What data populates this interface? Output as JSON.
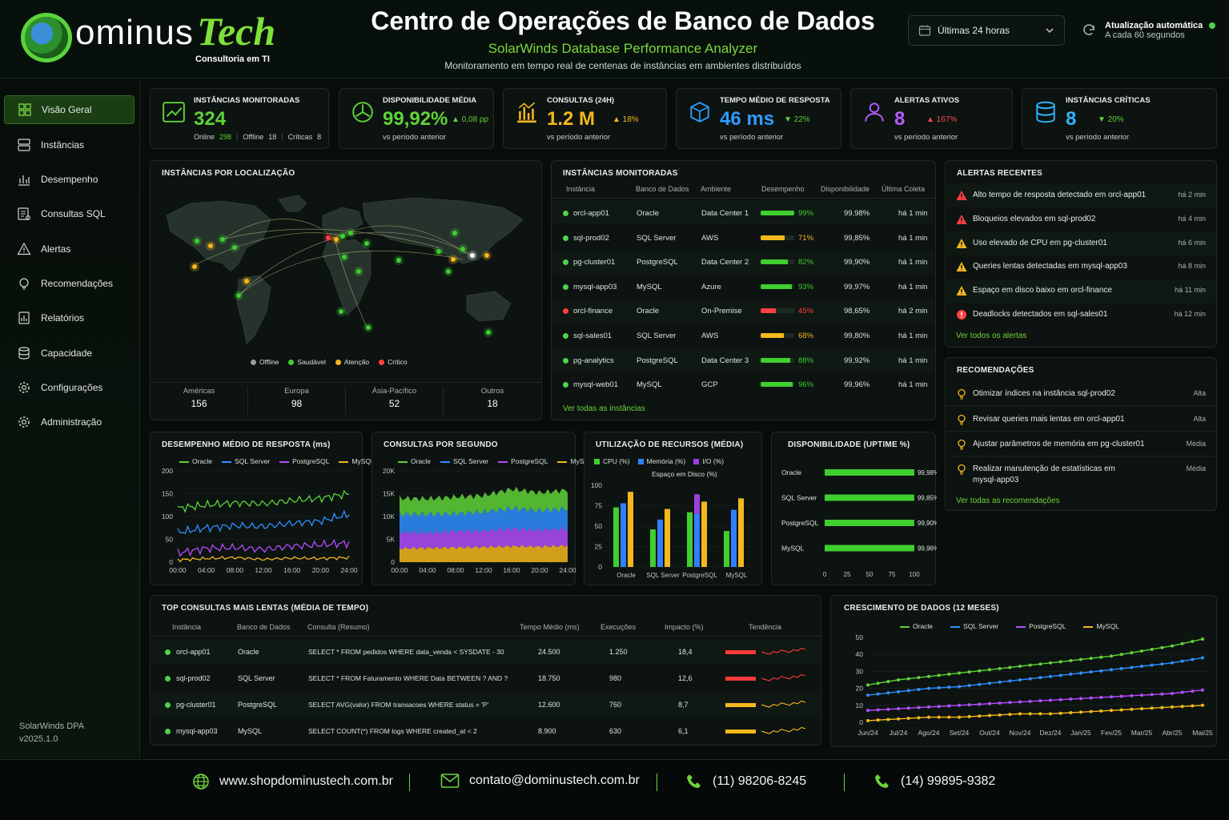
{
  "header": {
    "logo_main": "ominus",
    "logo_accent": "Tech",
    "logo_sub": "Consultoria em TI",
    "title": "Centro de Operações de Banco de Dados",
    "subtitle": "SolarWinds Database Performance Analyzer",
    "description": "Monitoramento em tempo real de centenas de instâncias em ambientes distribuídos",
    "period_select": "Últimas 24 horas",
    "auto_title": "Atualização automática",
    "auto_sub": "A cada 60 segundos"
  },
  "sidebar": {
    "items": [
      "Visão Geral",
      "Instâncias",
      "Desempenho",
      "Consultas SQL",
      "Alertas",
      "Recomendações",
      "Relatórios",
      "Capacidade",
      "Configurações",
      "Administração"
    ],
    "version_line1": "SolarWinds DPA",
    "version_line2": "v2025.1.0"
  },
  "kpis": [
    {
      "label": "INSTÂNCIAS MONITORADAS",
      "value": "324",
      "color": "#5fd33a",
      "online_label": "Online",
      "online": "298",
      "offline_label": "Offline",
      "offline": "18",
      "critical_label": "Críticas",
      "critical": "8",
      "icon": "trend-chart-icon"
    },
    {
      "label": "DISPONIBILIDADE MÉDIA",
      "value": "99,92%",
      "color": "#5fd33a",
      "change": "▲ 0,08 pp",
      "change_color": "#5fd33a",
      "sub": "vs período anterior",
      "icon": "gauge-icon"
    },
    {
      "label": "CONSULTAS (24H)",
      "value": "1.2 M",
      "color": "#f5b81c",
      "change": "▲ 18%",
      "change_color": "#f5b81c",
      "sub": "vs período anterior",
      "icon": "bar-chart-icon"
    },
    {
      "label": "TEMPO MÉDIO DE RESPOSTA",
      "value": "46 ms",
      "color": "#2f9cff",
      "change": "▼ 22%",
      "change_color": "#5fd33a",
      "sub": "vs período anterior",
      "icon": "cube-icon"
    },
    {
      "label": "ALERTAS ATIVOS",
      "value": "8",
      "color": "#b45cff",
      "change": "▲ 167%",
      "change_color": "#ff4848",
      "sub": "vs período anterior",
      "icon": "users-icon"
    },
    {
      "label": "INSTÂNCIAS CRÍTICAS",
      "value": "8",
      "color": "#2fb5ff",
      "change": "▼ 20%",
      "change_color": "#5fd33a",
      "sub": "vs período anterior",
      "icon": "database-icon"
    }
  ],
  "map": {
    "title": "INSTÂNCIAS POR LOCALIZAÇÃO",
    "legend": [
      "Offline",
      "Saudável",
      "Atenção",
      "Crítico"
    ],
    "regions": [
      {
        "name": "Américas",
        "value": "156"
      },
      {
        "name": "Europa",
        "value": "98"
      },
      {
        "name": "Ásia-Pacífico",
        "value": "52"
      },
      {
        "name": "Outros",
        "value": "18"
      }
    ]
  },
  "instances": {
    "title": "INSTÂNCIAS MONITORADAS",
    "columns": [
      "Instância",
      "Banco de Dados",
      "Ambiente",
      "Desempenho",
      "Disponibilidade",
      "Última Coleta"
    ],
    "rows": [
      {
        "name": "orcl-app01",
        "db": "Oracle",
        "env": "Data Center 1",
        "perf": 99,
        "perf_label": "99%",
        "avail": "99,98%",
        "last": "há 1 min",
        "status": "#4fd34f",
        "bar": "#3fcf2f"
      },
      {
        "name": "sql-prod02",
        "db": "SQL Server",
        "env": "AWS",
        "perf": 71,
        "perf_label": "71%",
        "avail": "99,85%",
        "last": "há 1 min",
        "status": "#4fd34f",
        "bar": "#f5b81c"
      },
      {
        "name": "pg-cluster01",
        "db": "PostgreSQL",
        "env": "Data Center 2",
        "perf": 82,
        "perf_label": "82%",
        "avail": "99,90%",
        "last": "há 1 min",
        "status": "#4fd34f",
        "bar": "#3fcf2f"
      },
      {
        "name": "mysql-app03",
        "db": "MySQL",
        "env": "Azure",
        "perf": 93,
        "perf_label": "93%",
        "avail": "99,97%",
        "last": "há 1 min",
        "status": "#4fd34f",
        "bar": "#3fcf2f"
      },
      {
        "name": "orcl-finance",
        "db": "Oracle",
        "env": "On-Premise",
        "perf": 45,
        "perf_label": "45%",
        "avail": "98,65%",
        "last": "há 2 min",
        "status": "#ff4040",
        "bar": "#ff4040"
      },
      {
        "name": "sql-sales01",
        "db": "SQL Server",
        "env": "AWS",
        "perf": 68,
        "perf_label": "68%",
        "avail": "99,80%",
        "last": "há 1 min",
        "status": "#4fd34f",
        "bar": "#f5b81c"
      },
      {
        "name": "pg-analytics",
        "db": "PostgreSQL",
        "env": "Data Center 3",
        "perf": 88,
        "perf_label": "88%",
        "avail": "99,92%",
        "last": "há 1 min",
        "status": "#4fd34f",
        "bar": "#3fcf2f"
      },
      {
        "name": "mysql-web01",
        "db": "MySQL",
        "env": "GCP",
        "perf": 96,
        "perf_label": "96%",
        "avail": "99,96%",
        "last": "há 1 min",
        "status": "#4fd34f",
        "bar": "#3fcf2f"
      }
    ],
    "link": "Ver todas as instâncias"
  },
  "alerts": {
    "title": "ALERTAS RECENTES",
    "items": [
      {
        "text": "Alto tempo de resposta detectado em orcl-app01",
        "time": "há 2 min",
        "color": "#ff4040"
      },
      {
        "text": "Bloqueios elevados em sql-prod02",
        "time": "há 4 min",
        "color": "#ff4040"
      },
      {
        "text": "Uso elevado de CPU em pg-cluster01",
        "time": "há 6 min",
        "color": "#f5b81c"
      },
      {
        "text": "Queries lentas detectadas em mysql-app03",
        "time": "há 8 min",
        "color": "#f5b81c"
      },
      {
        "text": "Espaço em disco baixo em orcl-finance",
        "time": "há 11 min",
        "color": "#f5b81c"
      },
      {
        "text": "Deadlocks detectados em sql-sales01",
        "time": "há 12 min",
        "color": "#ff4040"
      }
    ],
    "link": "Ver todos os alertas"
  },
  "recommendations": {
    "title": "RECOMENDAÇÕES",
    "items": [
      {
        "line1": "Otimizar índices na instância sql-prod02",
        "line2": "",
        "priority": "Alta"
      },
      {
        "line1": "Revisar queries mais lentas em orcl-app01",
        "line2": "",
        "priority": "Alta"
      },
      {
        "line1": "Ajustar parâmetros de memória em pg-cluster01",
        "line2": "",
        "priority": "Média"
      },
      {
        "line1": "Realizar manutenção de estatísticas em",
        "line2": "mysql-app03",
        "priority": "Média"
      }
    ],
    "link": "Ver todas as recomendações"
  },
  "slow_queries": {
    "title": "TOP CONSULTAS MAIS LENTAS (MÉDIA DE TEMPO)",
    "columns": [
      "Instância",
      "Banco de Dados",
      "Consulta (Resumo)",
      "Tempo Médio (ms)",
      "Execuções",
      "Impacto (%)",
      "Tendência"
    ],
    "rows": [
      {
        "inst": "orcl-app01",
        "db": "Oracle",
        "query": "SELECT * FROM pedidos WHERE data_venda < SYSDATE - 30",
        "time": "24.500",
        "exec": "1.250",
        "impact": "18,4",
        "color": "#ff3a3a"
      },
      {
        "inst": "sql-prod02",
        "db": "SQL Server",
        "query": "SELECT * FROM Faturamento WHERE Data BETWEEN ? AND ?",
        "time": "18.750",
        "exec": "980",
        "impact": "12,6",
        "color": "#ff3a3a"
      },
      {
        "inst": "pg-cluster01",
        "db": "PostgreSQL",
        "query": "SELECT AVG(valor) FROM transacoes WHERE status = 'P'",
        "time": "12.600",
        "exec": "760",
        "impact": "8,7",
        "color": "#f5b81c"
      },
      {
        "inst": "mysql-app03",
        "db": "MySQL",
        "query": "SELECT COUNT(*) FROM logs WHERE created_at < 2",
        "time": "8.900",
        "exec": "630",
        "impact": "6,1",
        "color": "#f5b81c"
      }
    ]
  },
  "series_colors": {
    "Oracle": "#5fd33a",
    "SQL Server": "#2f8fff",
    "PostgreSQL": "#b44cff",
    "MySQL": "#f5b81c"
  },
  "chart_data": [
    {
      "type": "line",
      "title": "DESEMPENHO MÉDIO DE RESPOSTA (ms)",
      "categories": [
        "00:00",
        "04:00",
        "08:00",
        "12:00",
        "16:00",
        "20:00",
        "24:00"
      ],
      "ylim": [
        0,
        200
      ],
      "yticks": [
        0,
        50,
        100,
        150,
        200
      ],
      "series": [
        {
          "name": "Oracle",
          "values": [
            118,
            125,
            130,
            128,
            135,
            140,
            150
          ]
        },
        {
          "name": "SQL Server",
          "values": [
            65,
            75,
            80,
            78,
            85,
            90,
            105
          ]
        },
        {
          "name": "PostgreSQL",
          "values": [
            20,
            30,
            32,
            28,
            35,
            38,
            42
          ]
        },
        {
          "name": "MySQL",
          "values": [
            5,
            8,
            10,
            6,
            9,
            8,
            10
          ]
        }
      ]
    },
    {
      "type": "area",
      "title": "CONSULTAS POR SEGUNDO",
      "categories": [
        "00:00",
        "04:00",
        "08:00",
        "12:00",
        "16:00",
        "20:00",
        "24:00"
      ],
      "yticks": [
        "0",
        "5K",
        "10K",
        "15K",
        "20K"
      ],
      "ylim": [
        0,
        20000
      ],
      "series": [
        {
          "name": "Oracle",
          "values": [
            3500,
            3400,
            3700,
            3600,
            4200,
            3900,
            4100
          ]
        },
        {
          "name": "SQL Server",
          "values": [
            4000,
            4100,
            3800,
            4200,
            4500,
            4300,
            4400
          ]
        },
        {
          "name": "PostgreSQL",
          "values": [
            3500,
            3300,
            3600,
            3500,
            3800,
            3600,
            3700
          ]
        },
        {
          "name": "MySQL",
          "values": [
            3000,
            3100,
            3200,
            3300,
            3500,
            3400,
            3600
          ]
        }
      ]
    },
    {
      "type": "bar",
      "title": "UTILIZAÇÃO DE RECURSOS (MÉDIA)",
      "categories": [
        "Oracle",
        "SQL Server",
        "PostgreSQL",
        "MySQL"
      ],
      "ylim": [
        0,
        100
      ],
      "yticks": [
        0,
        25,
        50,
        75,
        100
      ],
      "legend": [
        "CPU (%)",
        "Memória (%)",
        "I/O (%)",
        "Espaço em Disco (%)"
      ],
      "series": [
        {
          "name": "CPU (%)",
          "values": [
            73,
            46,
            67,
            44
          ],
          "color": "#3fcf2f"
        },
        {
          "name": "Memória (%)",
          "values": [
            78,
            58,
            65,
            70
          ],
          "color": "#2f7fff"
        },
        {
          "name": "I/O (%)",
          "values": [
            0,
            0,
            89,
            0
          ],
          "color": "#9b3fe0"
        },
        {
          "name": "Espaço em Disco (%)",
          "values": [
            92,
            71,
            80,
            84
          ],
          "color": "#f5b81c"
        }
      ]
    },
    {
      "type": "bar",
      "title": "DISPONIBILIDADE (UPTIME %)",
      "categories": [
        "Oracle",
        "SQL Server",
        "PostgreSQL",
        "MySQL"
      ],
      "values": [
        99.98,
        99.85,
        99.9,
        99.96
      ],
      "labels": [
        "99,98%",
        "99,85%",
        "99,90%",
        "99,96%"
      ],
      "xticks": [
        0,
        25,
        50,
        75,
        100
      ],
      "xlim": [
        0,
        100
      ]
    },
    {
      "type": "line",
      "title": "CRESCIMENTO DE DADOS (12 MESES)",
      "categories": [
        "Jun/24",
        "Jul/24",
        "Ago/24",
        "Set/24",
        "Out/24",
        "Nov/24",
        "Dez/24",
        "Jan/25",
        "Fev/25",
        "Mar/25",
        "Abr/25",
        "Mai/25"
      ],
      "ylim": [
        0,
        50
      ],
      "yticks": [
        0,
        10,
        20,
        30,
        40,
        50
      ],
      "series": [
        {
          "name": "Oracle",
          "values": [
            22,
            25,
            27,
            29,
            31,
            33,
            35,
            37,
            39,
            42,
            45,
            49
          ]
        },
        {
          "name": "SQL Server",
          "values": [
            16,
            18,
            20,
            21,
            23,
            25,
            27,
            29,
            31,
            33,
            35,
            38
          ]
        },
        {
          "name": "PostgreSQL",
          "values": [
            7,
            8,
            9,
            10,
            11,
            12,
            13,
            14,
            15,
            16,
            17,
            19
          ]
        },
        {
          "name": "MySQL",
          "values": [
            1,
            2,
            3,
            3,
            4,
            5,
            5,
            6,
            7,
            8,
            9,
            10
          ]
        }
      ]
    }
  ],
  "footer": {
    "site": "www.shopdominustech.com.br",
    "email": "contato@dominustech.com.br",
    "phone1": "(11) 98206-8245",
    "phone2": "(14) 99895-9382"
  }
}
